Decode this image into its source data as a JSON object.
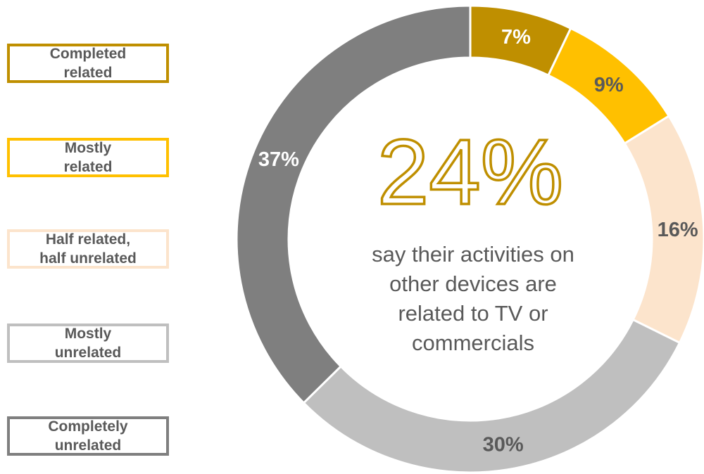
{
  "chart_data": {
    "type": "pie",
    "categories": [
      "Completed related",
      "Mostly related",
      "Half related, half unrelated",
      "Mostly unrelated",
      "Completely unrelated"
    ],
    "values": [
      7,
      9,
      16,
      30,
      37
    ],
    "labels": [
      "7%",
      "9%",
      "16%",
      "30%",
      "37%"
    ],
    "colors": [
      "#BF8F00",
      "#FFC000",
      "#FCE4CC",
      "#BFBFBF",
      "#7F7F7F"
    ],
    "label_colors": [
      "#ffffff",
      "#595959",
      "#595959",
      "#595959",
      "#ffffff"
    ],
    "legend_placement": "left",
    "center": {
      "headline": "24%",
      "text_lines": [
        "say their activities on",
        "other devices are",
        "related to TV or",
        "commercials"
      ]
    }
  },
  "legend": [
    {
      "label": "Completed\nrelated",
      "color": "#BF8F00"
    },
    {
      "label": "Mostly\nrelated",
      "color": "#FFC000"
    },
    {
      "label": "Half related,\nhalf unrelated",
      "color": "#FCE4CC"
    },
    {
      "label": "Mostly\nunrelated",
      "color": "#BFBFBF"
    },
    {
      "label": "Completely\nunrelated",
      "color": "#7F7F7F"
    }
  ]
}
